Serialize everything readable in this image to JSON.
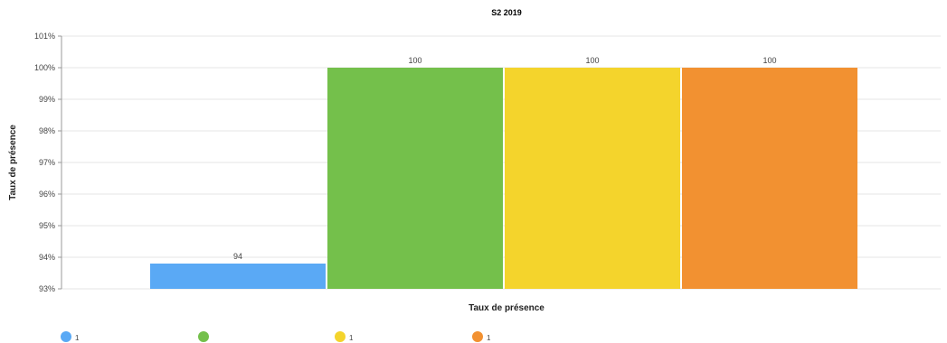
{
  "chart_data": {
    "type": "bar",
    "title": "S2 2019",
    "xlabel": "Taux de présence",
    "ylabel": "Taux de présence",
    "ylim": [
      93,
      101
    ],
    "y_ticks": [
      "93%",
      "94%",
      "95%",
      "96%",
      "97%",
      "98%",
      "99%",
      "100%",
      "101%"
    ],
    "grid": true,
    "legend_position": "bottom",
    "series": [
      {
        "name": "1",
        "value": 93.8,
        "label": "94",
        "color": "#5aa9f5"
      },
      {
        "name": "",
        "value": 100,
        "label": "100",
        "color": "#74c04b"
      },
      {
        "name": "1",
        "value": 100,
        "label": "100",
        "color": "#f4d42c"
      },
      {
        "name": "1",
        "value": 100,
        "label": "100",
        "color": "#f29131"
      }
    ]
  }
}
